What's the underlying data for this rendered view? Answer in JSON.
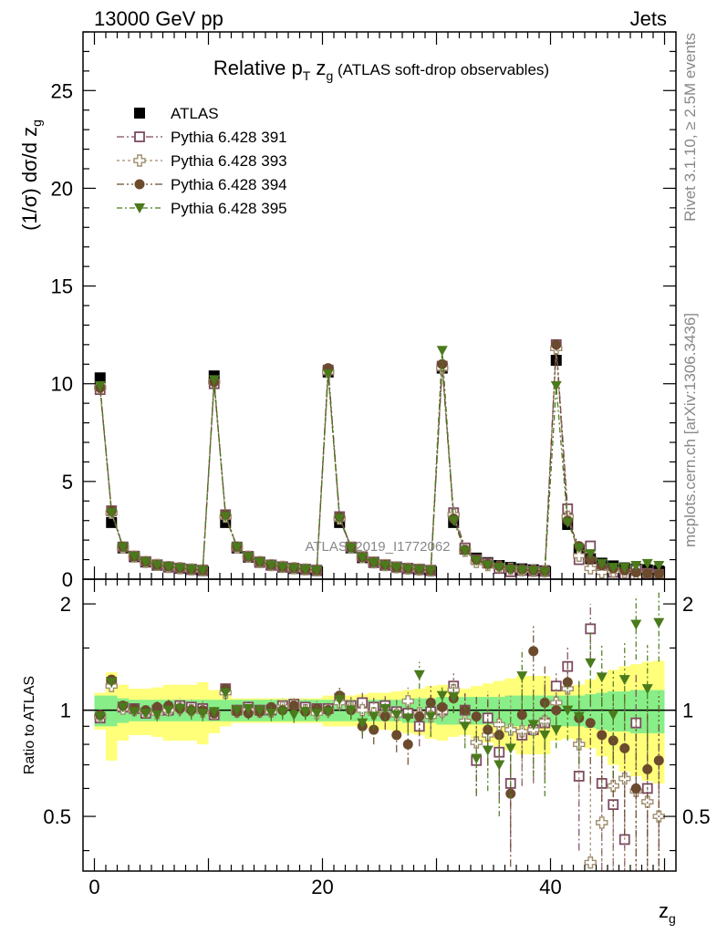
{
  "header": {
    "left": "13000 GeV pp",
    "right": "Jets"
  },
  "side_labels": {
    "rivet": "Rivet 3.1.10, ≥ 2.5M events",
    "mcplots": "mcplots.cern.ch [arXiv:1306.3436]"
  },
  "watermark": "ATLAS_2019_I1772062",
  "chart_data": {
    "type": "scatter",
    "title": {
      "main": "Relative p",
      "sub_t": "T",
      "z": " z",
      "sub_g": "g",
      "paren": " (ATLAS soft-drop observables)"
    },
    "ylabel": {
      "main": "(1/σ) dσ/d z",
      "sub": "g"
    },
    "xlabel": {
      "main": "z",
      "sub": "g"
    },
    "ratio_ylabel": "Ratio to ATLAS",
    "xlim": [
      -1,
      51
    ],
    "ylim": [
      0,
      28
    ],
    "ratio_ylim": [
      0.35,
      2.35
    ],
    "x_ticks": [
      "0",
      "20",
      "40"
    ],
    "y_ticks": [
      "0",
      "5",
      "10",
      "15",
      "20",
      "25"
    ],
    "ratio_ticks": [
      "0.5",
      "1",
      "2"
    ],
    "legend_position": "top-left",
    "x": [
      0.5,
      1.5,
      2.5,
      3.5,
      4.5,
      5.5,
      6.5,
      7.5,
      8.5,
      9.5,
      10.5,
      11.5,
      12.5,
      13.5,
      14.5,
      15.5,
      16.5,
      17.5,
      18.5,
      19.5,
      20.5,
      21.5,
      22.5,
      23.5,
      24.5,
      25.5,
      26.5,
      27.5,
      28.5,
      29.5,
      30.5,
      31.5,
      32.5,
      33.5,
      34.5,
      35.5,
      36.5,
      37.5,
      38.5,
      39.5,
      40.5,
      41.5,
      42.5,
      43.5,
      44.5,
      45.5,
      46.5,
      47.5,
      48.5,
      49.5
    ],
    "series": [
      {
        "name": "ATLAS",
        "color": "#000000",
        "marker": "filled-square",
        "values": [
          10.3,
          2.9,
          1.6,
          1.15,
          0.88,
          0.72,
          0.62,
          0.56,
          0.5,
          0.45,
          10.4,
          2.9,
          1.6,
          1.13,
          0.87,
          0.72,
          0.62,
          0.55,
          0.5,
          0.45,
          10.6,
          2.9,
          1.6,
          1.1,
          0.86,
          0.72,
          0.62,
          0.55,
          0.5,
          0.45,
          10.8,
          2.9,
          1.55,
          1.08,
          0.85,
          0.7,
          0.6,
          0.53,
          0.48,
          0.43,
          11.2,
          2.8,
          1.5,
          1.05,
          0.82,
          0.68,
          0.58,
          0.52,
          0.47,
          0.42
        ],
        "ratio_band_inner": [
          0.1,
          0.1,
          0.08,
          0.07,
          0.07,
          0.07,
          0.07,
          0.07,
          0.07,
          0.07,
          0.07,
          0.07,
          0.07,
          0.07,
          0.07,
          0.07,
          0.07,
          0.07,
          0.07,
          0.07,
          0.07,
          0.07,
          0.07,
          0.07,
          0.07,
          0.07,
          0.07,
          0.08,
          0.08,
          0.08,
          0.09,
          0.09,
          0.09,
          0.09,
          0.09,
          0.09,
          0.1,
          0.1,
          0.1,
          0.1,
          0.1,
          0.1,
          0.1,
          0.11,
          0.12,
          0.13,
          0.13,
          0.14,
          0.14,
          0.14
        ],
        "ratio_band_outer": [
          0.12,
          0.28,
          0.18,
          0.15,
          0.15,
          0.16,
          0.18,
          0.18,
          0.18,
          0.2,
          0.14,
          0.1,
          0.08,
          0.08,
          0.08,
          0.08,
          0.08,
          0.08,
          0.08,
          0.08,
          0.1,
          0.1,
          0.1,
          0.11,
          0.12,
          0.12,
          0.13,
          0.14,
          0.15,
          0.17,
          0.18,
          0.16,
          0.15,
          0.17,
          0.19,
          0.21,
          0.23,
          0.25,
          0.25,
          0.25,
          0.18,
          0.17,
          0.18,
          0.22,
          0.26,
          0.3,
          0.33,
          0.35,
          0.37,
          0.38
        ]
      },
      {
        "name": "Pythia 6.428 391",
        "color": "#7d4a62",
        "marker": "open-square",
        "values": [
          9.7,
          3.5,
          1.65,
          1.18,
          0.9,
          0.74,
          0.63,
          0.57,
          0.51,
          0.46,
          10.0,
          3.3,
          1.65,
          1.17,
          0.88,
          0.73,
          0.64,
          0.57,
          0.51,
          0.46,
          10.7,
          3.2,
          1.65,
          1.15,
          0.88,
          0.74,
          0.62,
          0.55,
          0.5,
          0.45,
          10.9,
          3.4,
          1.6,
          1.0,
          0.82,
          0.55,
          0.38,
          0.45,
          0.42,
          0.4,
          12.0,
          3.6,
          1.0,
          1.7,
          0.5,
          0.35,
          0.25,
          0.48,
          0.3,
          0.25
        ],
        "ratio": [
          0.95,
          1.2,
          1.02,
          1.01,
          0.98,
          1.0,
          1.0,
          1.03,
          1.02,
          1.01,
          0.97,
          1.15,
          1.0,
          1.02,
          1.0,
          1.0,
          1.03,
          1.04,
          1.02,
          1.01,
          1.01,
          1.08,
          1.03,
          1.05,
          1.02,
          1.03,
          0.99,
          0.98,
          0.9,
          0.99,
          1.0,
          1.17,
          1.0,
          0.72,
          0.95,
          0.76,
          0.62,
          0.85,
          0.88,
          0.92,
          1.17,
          1.33,
          0.65,
          1.7,
          0.62,
          0.54,
          0.43,
          0.92,
          0.6,
          0.3
        ],
        "ratio_err": [
          0.03,
          0.04,
          0.03,
          0.03,
          0.03,
          0.04,
          0.04,
          0.05,
          0.05,
          0.05,
          0.03,
          0.05,
          0.04,
          0.04,
          0.04,
          0.05,
          0.05,
          0.05,
          0.05,
          0.05,
          0.04,
          0.06,
          0.06,
          0.07,
          0.08,
          0.08,
          0.09,
          0.1,
          0.11,
          0.12,
          0.06,
          0.1,
          0.12,
          0.15,
          0.18,
          0.2,
          0.22,
          0.24,
          0.26,
          0.28,
          0.1,
          0.18,
          0.25,
          0.3,
          0.3,
          0.32,
          0.34,
          0.36,
          0.38,
          0.4
        ]
      },
      {
        "name": "Pythia 6.428 393",
        "color": "#a08d6d",
        "marker": "open-cross",
        "values": [
          9.8,
          3.4,
          1.62,
          1.16,
          0.88,
          0.73,
          0.62,
          0.56,
          0.5,
          0.45,
          10.1,
          3.2,
          1.62,
          1.15,
          0.87,
          0.72,
          0.63,
          0.56,
          0.5,
          0.45,
          10.6,
          3.1,
          1.62,
          1.13,
          0.86,
          0.72,
          0.61,
          0.54,
          0.49,
          0.44,
          10.8,
          3.3,
          1.45,
          0.88,
          0.72,
          0.64,
          0.53,
          0.46,
          0.42,
          0.4,
          11.8,
          3.2,
          1.2,
          0.55,
          0.35,
          0.4,
          0.38,
          0.3,
          0.25,
          0.2
        ],
        "ratio": [
          0.96,
          1.17,
          1.01,
          1.0,
          0.99,
          0.98,
          1.0,
          1.01,
          1.0,
          0.99,
          0.98,
          1.12,
          0.99,
          1.0,
          0.99,
          0.99,
          1.02,
          1.03,
          1.0,
          0.98,
          1.0,
          1.05,
          1.02,
          1.0,
          0.98,
          0.97,
          0.97,
          1.06,
          0.98,
          0.96,
          0.99,
          1.14,
          0.93,
          0.81,
          0.85,
          0.91,
          0.88,
          0.87,
          0.88,
          0.93,
          1.05,
          1.15,
          0.8,
          0.37,
          0.48,
          0.61,
          0.64,
          0.59,
          0.55,
          0.5
        ],
        "ratio_err": [
          0.03,
          0.04,
          0.03,
          0.03,
          0.03,
          0.04,
          0.04,
          0.05,
          0.05,
          0.05,
          0.03,
          0.05,
          0.04,
          0.04,
          0.04,
          0.05,
          0.05,
          0.05,
          0.05,
          0.05,
          0.04,
          0.06,
          0.06,
          0.07,
          0.08,
          0.08,
          0.09,
          0.1,
          0.11,
          0.12,
          0.06,
          0.1,
          0.12,
          0.15,
          0.18,
          0.2,
          0.22,
          0.24,
          0.26,
          0.28,
          0.1,
          0.18,
          0.25,
          0.3,
          0.3,
          0.32,
          0.34,
          0.36,
          0.38,
          0.4
        ]
      },
      {
        "name": "Pythia 6.428 394",
        "color": "#6b4a2e",
        "marker": "filled-circle",
        "values": [
          9.8,
          3.5,
          1.66,
          1.17,
          0.9,
          0.73,
          0.64,
          0.57,
          0.51,
          0.46,
          10.1,
          3.3,
          1.66,
          1.16,
          0.89,
          0.73,
          0.63,
          0.57,
          0.51,
          0.46,
          10.8,
          3.2,
          1.63,
          1.13,
          0.87,
          0.73,
          0.61,
          0.55,
          0.5,
          0.45,
          11.0,
          3.1,
          1.5,
          1.0,
          0.78,
          0.68,
          0.55,
          0.5,
          0.45,
          0.42,
          12.0,
          3.0,
          1.7,
          1.0,
          0.7,
          0.55,
          0.45,
          0.35,
          0.3,
          0.27
        ],
        "ratio": [
          0.97,
          1.22,
          1.03,
          1.01,
          1.0,
          1.02,
          1.03,
          1.01,
          1.0,
          1.0,
          0.98,
          1.15,
          0.99,
          0.98,
          0.99,
          1.02,
          1.0,
          1.03,
          0.99,
          1.01,
          1.0,
          1.1,
          1.0,
          0.9,
          0.88,
          0.96,
          0.85,
          0.8,
          0.96,
          1.05,
          1.02,
          1.08,
          1.0,
          0.96,
          0.88,
          0.85,
          0.58,
          0.97,
          1.47,
          1.05,
          1.0,
          1.2,
          0.95,
          0.92,
          0.85,
          0.82,
          0.78,
          0.6,
          0.68,
          0.72
        ],
        "ratio_err": [
          0.03,
          0.04,
          0.03,
          0.03,
          0.03,
          0.04,
          0.04,
          0.05,
          0.05,
          0.05,
          0.03,
          0.05,
          0.04,
          0.04,
          0.04,
          0.05,
          0.05,
          0.05,
          0.05,
          0.05,
          0.04,
          0.06,
          0.06,
          0.07,
          0.08,
          0.08,
          0.09,
          0.1,
          0.11,
          0.12,
          0.06,
          0.1,
          0.12,
          0.15,
          0.18,
          0.2,
          0.22,
          0.24,
          0.26,
          0.28,
          0.1,
          0.18,
          0.25,
          0.3,
          0.3,
          0.32,
          0.34,
          0.36,
          0.38,
          0.4
        ]
      },
      {
        "name": "Pythia 6.428 395",
        "color": "#4a7a1c",
        "marker": "filled-triangle-down",
        "values": [
          9.9,
          3.4,
          1.63,
          1.15,
          0.88,
          0.72,
          0.63,
          0.56,
          0.5,
          0.45,
          10.2,
          3.2,
          1.63,
          1.14,
          0.87,
          0.72,
          0.62,
          0.55,
          0.5,
          0.45,
          10.5,
          3.1,
          1.6,
          1.1,
          0.84,
          0.7,
          0.6,
          0.53,
          0.48,
          0.43,
          11.7,
          3.0,
          1.45,
          0.95,
          0.72,
          0.6,
          0.5,
          0.45,
          0.42,
          0.38,
          9.9,
          2.9,
          1.6,
          1.3,
          0.8,
          0.6,
          0.6,
          0.7,
          0.8,
          0.7
        ],
        "ratio": [
          0.96,
          1.2,
          1.02,
          0.99,
          0.98,
          0.97,
          1.0,
          1.01,
          0.99,
          0.98,
          0.99,
          1.12,
          1.0,
          1.01,
          1.0,
          0.98,
          0.99,
          0.97,
          0.99,
          0.98,
          0.99,
          1.07,
          1.0,
          0.92,
          0.96,
          1.01,
          0.97,
          0.95,
          1.26,
          0.96,
          1.1,
          1.09,
          0.9,
          0.73,
          0.77,
          0.7,
          0.78,
          1.25,
          0.91,
          0.85,
          0.88,
          1.0,
          0.96,
          1.36,
          1.24,
          0.97,
          1.22,
          1.75,
          1.15,
          1.77
        ],
        "ratio_err": [
          0.03,
          0.04,
          0.03,
          0.03,
          0.03,
          0.04,
          0.04,
          0.05,
          0.05,
          0.05,
          0.03,
          0.05,
          0.04,
          0.04,
          0.04,
          0.05,
          0.05,
          0.05,
          0.05,
          0.05,
          0.04,
          0.06,
          0.06,
          0.07,
          0.08,
          0.08,
          0.09,
          0.1,
          0.11,
          0.12,
          0.06,
          0.1,
          0.12,
          0.15,
          0.18,
          0.2,
          0.22,
          0.24,
          0.26,
          0.28,
          0.1,
          0.18,
          0.25,
          0.3,
          0.3,
          0.32,
          0.34,
          0.36,
          0.38,
          0.4
        ]
      }
    ]
  }
}
